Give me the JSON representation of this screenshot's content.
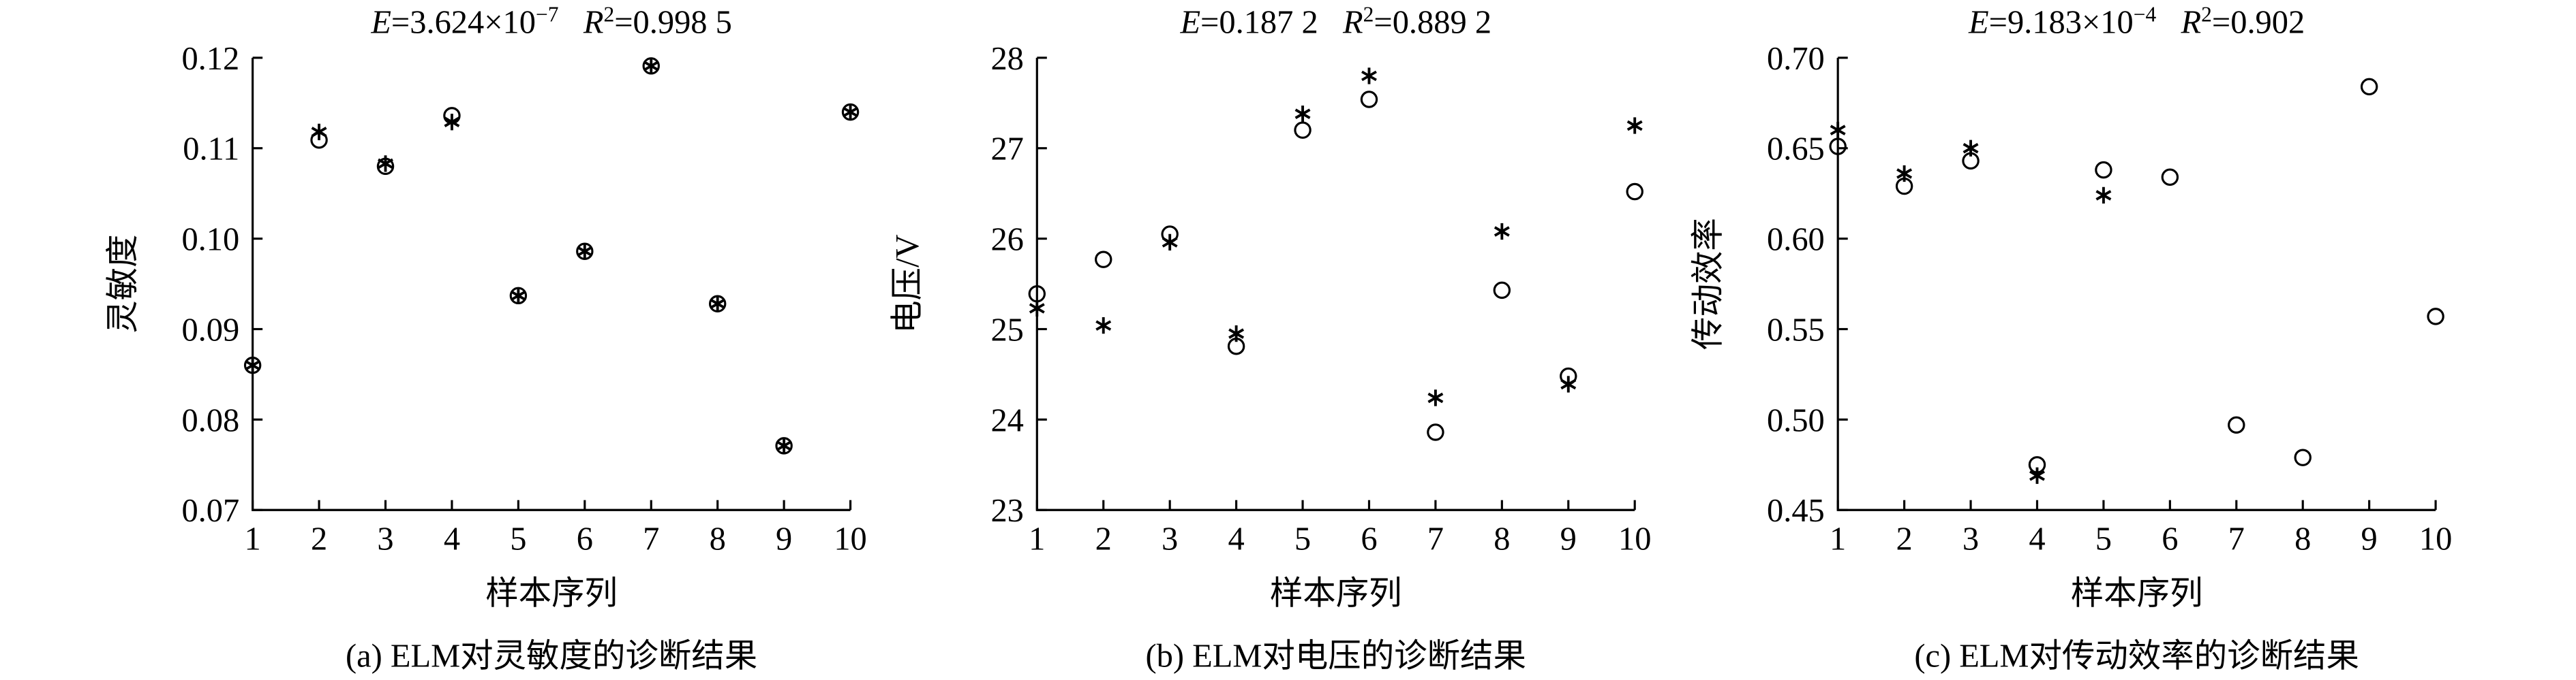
{
  "chart_data": [
    {
      "type": "scatter",
      "annotation": [
        {
          "text": "E",
          "italic": true
        },
        {
          "text": "=3.624×10"
        },
        {
          "text": "−7",
          "sup": true
        },
        {
          "text": "   R",
          "italic": true
        },
        {
          "text": "2",
          "sup": true
        },
        {
          "text": "=0.998 5"
        }
      ],
      "ylabel": "灵敏度",
      "xlabel": "样本序列",
      "caption": "(a) ELM对灵敏度的诊断结果",
      "x": [
        1,
        2,
        3,
        4,
        5,
        6,
        7,
        8,
        9,
        10
      ],
      "xlim": [
        1,
        10
      ],
      "xticks": [
        1,
        2,
        3,
        4,
        5,
        6,
        7,
        8,
        9,
        10
      ],
      "ylim": [
        0.07,
        0.12
      ],
      "yticks": [
        {
          "value": 0.07,
          "label": "0.07"
        },
        0.08,
        0.09,
        {
          "value": 0.1,
          "label": "0.10"
        },
        0.11,
        0.12
      ],
      "series": [
        {
          "marker": "circle",
          "color": "#000000",
          "values": [
            0.086,
            0.1109,
            0.108,
            0.1136,
            0.0937,
            0.0986,
            0.1191,
            0.0928,
            0.0771,
            0.114
          ]
        },
        {
          "marker": "star",
          "color": "#000000",
          "values": [
            0.086,
            0.1118,
            0.1083,
            0.1129,
            0.0937,
            0.0986,
            0.1191,
            0.0928,
            0.0771,
            0.114
          ]
        }
      ]
    },
    {
      "type": "scatter",
      "annotation": [
        {
          "text": "E",
          "italic": true
        },
        {
          "text": "=0.187 2   "
        },
        {
          "text": "R",
          "italic": true
        },
        {
          "text": "2",
          "sup": true
        },
        {
          "text": "=0.889 2"
        }
      ],
      "ylabel": "电压/V",
      "xlabel": "样本序列",
      "caption": "(b) ELM对电压的诊断结果",
      "x": [
        1,
        2,
        3,
        4,
        5,
        6,
        7,
        8,
        9,
        10
      ],
      "xlim": [
        1,
        10
      ],
      "xticks": [
        1,
        2,
        3,
        4,
        5,
        6,
        7,
        8,
        9,
        10
      ],
      "ylim": [
        23,
        28
      ],
      "yticks": [
        23,
        24,
        25,
        26,
        27,
        28
      ],
      "series": [
        {
          "marker": "circle",
          "color": "#000000",
          "values": [
            25.39,
            25.77,
            26.05,
            24.81,
            27.2,
            27.54,
            23.86,
            25.43,
            24.48,
            26.52
          ]
        },
        {
          "marker": "star",
          "color": "#000000",
          "values": [
            25.23,
            25.04,
            25.96,
            24.95,
            27.38,
            27.8,
            24.24,
            26.08,
            24.39,
            27.25
          ]
        }
      ]
    },
    {
      "type": "scatter",
      "annotation": [
        {
          "text": "E",
          "italic": true
        },
        {
          "text": "=9.183×10"
        },
        {
          "text": "−4",
          "sup": true
        },
        {
          "text": "   R",
          "italic": true
        },
        {
          "text": "2",
          "sup": true
        },
        {
          "text": "=0.902"
        }
      ],
      "ylabel": "传动效率",
      "xlabel": "样本序列",
      "caption": "(c) ELM对传动效率的诊断结果",
      "x": [
        1,
        2,
        3,
        4,
        5,
        6,
        7,
        8,
        9,
        10
      ],
      "xlim": [
        1,
        10
      ],
      "xticks": [
        1,
        2,
        3,
        4,
        5,
        6,
        7,
        8,
        9,
        10
      ],
      "ylim": [
        0.45,
        0.7
      ],
      "yticks": [
        0.45,
        {
          "value": 0.5,
          "label": "0.50"
        },
        0.55,
        {
          "value": 0.6,
          "label": "0.60"
        },
        0.65,
        {
          "value": 0.7,
          "label": "0.70"
        }
      ],
      "series": [
        {
          "marker": "circle",
          "color": "#000000",
          "values": [
            0.651,
            0.629,
            0.643,
            0.475,
            0.638,
            0.634,
            0.497,
            0.479,
            0.684,
            0.557
          ]
        },
        {
          "marker": "star",
          "color": "#000000",
          "values": [
            0.66,
            0.636,
            0.65,
            0.469,
            0.624,
            null,
            null,
            null,
            null,
            null
          ]
        }
      ]
    }
  ]
}
